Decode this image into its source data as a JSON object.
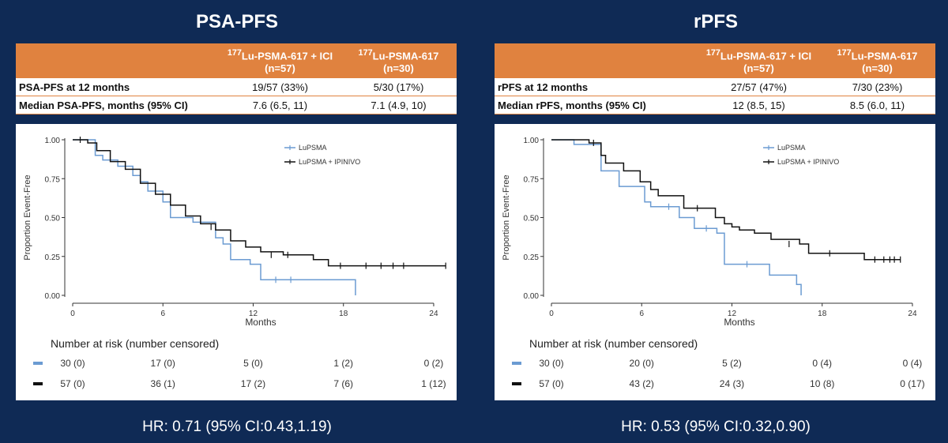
{
  "panels": [
    {
      "title": "PSA-PFS",
      "table": {
        "header_col1": "177Lu-PSMA-617 + ICI (n=57)",
        "header_col2": "177Lu-PSMA-617 (n=30)",
        "rows": [
          {
            "label": "PSA-PFS at 12 months",
            "v1": "19/57 (33%)",
            "v2": "5/30 (17%)"
          },
          {
            "label": "Median PSA-PFS, months (95% CI)",
            "v1": "7.6 (6.5, 11)",
            "v2": "7.1 (4.9, 10)"
          }
        ]
      },
      "hr_text": "HR: 0.71 (95% CI:0.43,1.19)"
    },
    {
      "title": "rPFS",
      "table": {
        "header_col1": "177Lu-PSMA-617 + ICI (n=57)",
        "header_col2": "177Lu-PSMA-617 (n=30)",
        "rows": [
          {
            "label": "rPFS at 12 months",
            "v1": "27/57 (47%)",
            "v2": "7/30 (23%)"
          },
          {
            "label": "Median rPFS, months (95% CI)",
            "v1": "12 (8.5, 15)",
            "v2": "8.5 (6.0, 11)"
          }
        ]
      },
      "hr_text": "HR: 0.53 (95% CI:0.32,0.90)"
    }
  ],
  "chart_data": [
    {
      "type": "line",
      "step": true,
      "xlabel": "Months",
      "ylabel": "Proportion Event-Free",
      "xlim": [
        0,
        25
      ],
      "ylim": [
        0,
        1
      ],
      "xticks": [
        0,
        6,
        12,
        18,
        24
      ],
      "yticks": [
        "0.00",
        "0.25",
        "0.50",
        "0.75",
        "1.00"
      ],
      "legend_position": "top-right",
      "series": [
        {
          "name": "LuPSMA",
          "color": "#6b9bd2",
          "x": [
            0,
            1.5,
            2,
            3,
            4,
            4.5,
            5,
            6,
            6.5,
            8,
            9.5,
            10,
            10.5,
            11.8,
            12.5,
            18.8,
            18.8
          ],
          "y": [
            1.0,
            0.9,
            0.87,
            0.83,
            0.77,
            0.73,
            0.67,
            0.6,
            0.5,
            0.47,
            0.37,
            0.33,
            0.23,
            0.2,
            0.1,
            0.1,
            0.0
          ],
          "censored": [
            [
              13.5,
              0.1
            ],
            [
              14.5,
              0.1
            ]
          ]
        },
        {
          "name": "LuPSMA + IPINIVO",
          "color": "#111111",
          "x": [
            0,
            1,
            1.6,
            2.5,
            3.5,
            4.5,
            5.5,
            6.5,
            7.5,
            8.5,
            9.5,
            10.5,
            11.5,
            12.5,
            14,
            16,
            17
          ],
          "y": [
            1.0,
            0.98,
            0.93,
            0.86,
            0.81,
            0.72,
            0.65,
            0.58,
            0.51,
            0.46,
            0.42,
            0.35,
            0.31,
            0.28,
            0.26,
            0.23,
            0.19
          ],
          "censored": [
            [
              0.5,
              1.0
            ],
            [
              9.2,
              0.44
            ],
            [
              13.2,
              0.26
            ],
            [
              14.3,
              0.26
            ],
            [
              17.8,
              0.19
            ],
            [
              19.5,
              0.19
            ],
            [
              20.5,
              0.19
            ],
            [
              21.3,
              0.19
            ],
            [
              22,
              0.19
            ],
            [
              24.8,
              0.19
            ]
          ]
        }
      ],
      "risk_table": {
        "title": "Number at risk (number censored)",
        "timepoints": [
          0,
          6,
          12,
          18,
          24
        ],
        "rows": [
          {
            "color": "#6b9bd2",
            "values": [
              "30 (0)",
              "17 (0)",
              "5 (0)",
              "1 (2)",
              "0 (2)"
            ]
          },
          {
            "color": "#111111",
            "values": [
              "57 (0)",
              "36 (1)",
              "17 (2)",
              "7 (6)",
              "1 (12)"
            ]
          }
        ]
      }
    },
    {
      "type": "line",
      "step": true,
      "xlabel": "Months",
      "ylabel": "Proportion Event-Free",
      "xlim": [
        0,
        25
      ],
      "ylim": [
        0,
        1
      ],
      "xticks": [
        0,
        6,
        12,
        18,
        24
      ],
      "yticks": [
        "0.00",
        "0.25",
        "0.50",
        "0.75",
        "1.00"
      ],
      "legend_position": "top-right",
      "series": [
        {
          "name": "LuPSMA",
          "color": "#6b9bd2",
          "x": [
            0,
            1.5,
            3.3,
            4.5,
            6.2,
            6.6,
            8.5,
            9.5,
            11,
            11.5,
            14.5,
            16.3,
            16.6
          ],
          "y": [
            1.0,
            0.97,
            0.8,
            0.7,
            0.6,
            0.57,
            0.5,
            0.43,
            0.4,
            0.2,
            0.13,
            0.07,
            0.0
          ],
          "censored": [
            [
              7.8,
              0.57
            ],
            [
              10.3,
              0.43
            ],
            [
              13,
              0.2
            ]
          ]
        },
        {
          "name": "LuPSMA + IPINIVO",
          "color": "#111111",
          "x": [
            0,
            2.5,
            3.3,
            3.6,
            4.8,
            5.9,
            6.6,
            7.1,
            8.8,
            10.9,
            11.5,
            12,
            12.5,
            13.5,
            14.6,
            16.5,
            17.1,
            20.8
          ],
          "y": [
            1.0,
            0.98,
            0.9,
            0.85,
            0.8,
            0.73,
            0.68,
            0.64,
            0.56,
            0.5,
            0.46,
            0.44,
            0.42,
            0.4,
            0.36,
            0.33,
            0.27,
            0.23
          ],
          "censored": [
            [
              2.8,
              0.98
            ],
            [
              9.7,
              0.56
            ],
            [
              15.8,
              0.33
            ],
            [
              18.5,
              0.27
            ],
            [
              21.5,
              0.23
            ],
            [
              22.1,
              0.23
            ],
            [
              22.5,
              0.23
            ],
            [
              22.8,
              0.23
            ],
            [
              23.2,
              0.23
            ]
          ]
        }
      ],
      "risk_table": {
        "title": "Number at risk (number censored)",
        "timepoints": [
          0,
          6,
          12,
          18,
          24
        ],
        "rows": [
          {
            "color": "#6b9bd2",
            "values": [
              "30 (0)",
              "20 (0)",
              "5 (2)",
              "0 (4)",
              "0 (4)"
            ]
          },
          {
            "color": "#111111",
            "values": [
              "57 (0)",
              "43 (2)",
              "24 (3)",
              "10 (8)",
              "0 (17)"
            ]
          }
        ]
      }
    }
  ]
}
